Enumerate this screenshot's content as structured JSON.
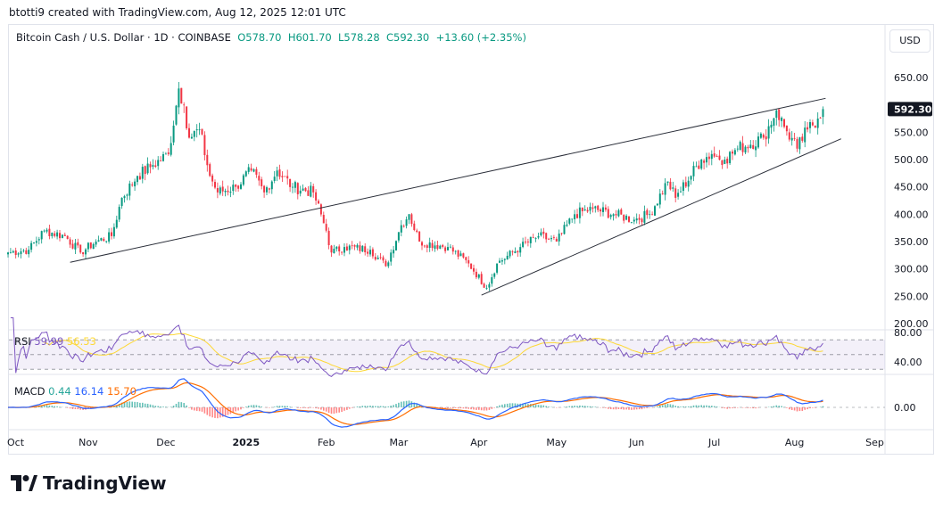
{
  "header": {
    "credit": "btotti9 created with TradingView.com, Aug 12, 2025 12:01 UTC"
  },
  "legend": {
    "symbol": "Bitcoin Cash / U.S. Dollar · 1D · COINBASE",
    "open": "O578.70",
    "high": "H601.70",
    "low": "L578.28",
    "close": "C592.30",
    "change": "+13.60 (+2.35%)"
  },
  "currency_button": "USD",
  "rsi": {
    "label": "RSI",
    "value": "59.99",
    "ma": "56.53"
  },
  "macd": {
    "label": "MACD",
    "hist": "0.44",
    "macd": "16.14",
    "signal": "15.70"
  },
  "footer": {
    "brand": "TradingView"
  },
  "chart_data": {
    "type": "candlestick",
    "title": "Bitcoin Cash / U.S. Dollar · 1D · COINBASE",
    "x_start": "Oct 1 2024",
    "x_unit": "days",
    "price_ticks": [
      650,
      600,
      550,
      500,
      450,
      400,
      350,
      300,
      250,
      200
    ],
    "price_tick_labels": [
      "650.00",
      "600.00",
      "550.00",
      "500.00",
      "450.00",
      "400.00",
      "350.00",
      "300.00",
      "250.00",
      "200.00"
    ],
    "ylim": [
      200,
      650
    ],
    "last_price": "592.30",
    "rsi_ticks": [
      "80.00",
      "40.00"
    ],
    "macd_ticks": [
      "0.00"
    ],
    "x_labels": [
      [
        "Oct",
        0
      ],
      [
        "Nov",
        31
      ],
      [
        "Dec",
        61
      ],
      [
        "2025",
        92
      ],
      [
        "Feb",
        123
      ],
      [
        "Mar",
        151
      ],
      [
        "Apr",
        182
      ],
      [
        "May",
        212
      ],
      [
        "Jun",
        243
      ],
      [
        "Jul",
        273
      ],
      [
        "Aug",
        304
      ],
      [
        "Sep",
        335
      ]
    ],
    "close_keyframes": [
      [
        0,
        330
      ],
      [
        8,
        335
      ],
      [
        14,
        370
      ],
      [
        22,
        360
      ],
      [
        28,
        330
      ],
      [
        34,
        350
      ],
      [
        40,
        360
      ],
      [
        44,
        430
      ],
      [
        50,
        470
      ],
      [
        56,
        490
      ],
      [
        62,
        510
      ],
      [
        66,
        630
      ],
      [
        68,
        600
      ],
      [
        70,
        540
      ],
      [
        74,
        555
      ],
      [
        78,
        470
      ],
      [
        81,
        440
      ],
      [
        88,
        450
      ],
      [
        94,
        480
      ],
      [
        99,
        440
      ],
      [
        104,
        480
      ],
      [
        110,
        450
      ],
      [
        118,
        440
      ],
      [
        123,
        370
      ],
      [
        125,
        330
      ],
      [
        130,
        340
      ],
      [
        140,
        335
      ],
      [
        146,
        305
      ],
      [
        152,
        380
      ],
      [
        155,
        400
      ],
      [
        159,
        350
      ],
      [
        170,
        340
      ],
      [
        178,
        310
      ],
      [
        185,
        265
      ],
      [
        189,
        310
      ],
      [
        198,
        340
      ],
      [
        205,
        360
      ],
      [
        212,
        350
      ],
      [
        219,
        400
      ],
      [
        226,
        410
      ],
      [
        234,
        400
      ],
      [
        242,
        390
      ],
      [
        248,
        400
      ],
      [
        255,
        460
      ],
      [
        258,
        430
      ],
      [
        268,
        500
      ],
      [
        272,
        510
      ],
      [
        277,
        500
      ],
      [
        282,
        520
      ],
      [
        292,
        540
      ],
      [
        297,
        590
      ],
      [
        300,
        560
      ],
      [
        305,
        520
      ],
      [
        309,
        555
      ],
      [
        313,
        575
      ],
      [
        315,
        592.3
      ]
    ],
    "trendlines": [
      {
        "from": [
          24,
          312
        ],
        "to": [
          316,
          612
        ]
      },
      {
        "from": [
          183,
          252
        ],
        "to": [
          322,
          538
        ]
      }
    ]
  }
}
